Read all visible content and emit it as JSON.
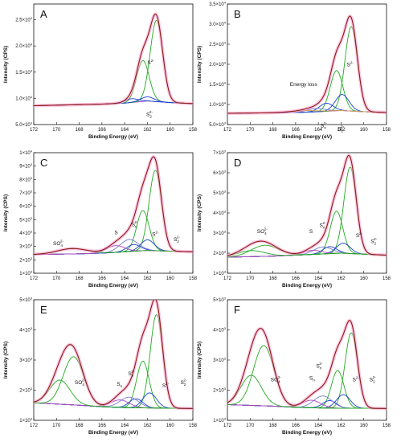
{
  "chart_data": [
    {
      "id": "A",
      "type": "line",
      "letter": "A",
      "xlabel": "Binding Energy (eV)",
      "ylabel": "Intensity (CPS)",
      "xlim": [
        172,
        158
      ],
      "xticks": [
        172,
        170,
        168,
        166,
        164,
        162,
        160,
        158
      ],
      "ylim": [
        5000,
        28000
      ],
      "yticks": [
        {
          "v": 5000,
          "m": "5.0",
          "e": "3"
        },
        {
          "v": 10000,
          "m": "1.0",
          "e": "4"
        },
        {
          "v": 15000,
          "m": "1.5",
          "e": "4"
        },
        {
          "v": 20000,
          "m": "2.0",
          "e": "4"
        },
        {
          "v": 25000,
          "m": "2.5",
          "e": "4"
        }
      ],
      "baseline": [
        [
          172,
          8600
        ],
        [
          166,
          8900
        ],
        [
          164,
          9100
        ],
        [
          162,
          9500
        ],
        [
          160,
          9200
        ],
        [
          158,
          9000
        ]
      ],
      "peaks": [
        {
          "name": "S2-",
          "c": 161.2,
          "a": 15500,
          "w": 0.55,
          "color": "#22aa22"
        },
        {
          "name": "S2-",
          "c": 162.4,
          "a": 7800,
          "w": 0.55,
          "color": "#22aa22"
        },
        {
          "name": "S22-",
          "c": 162.0,
          "a": 800,
          "w": 0.6,
          "color": "#1a3fd0"
        },
        {
          "name": "S22-",
          "c": 163.4,
          "a": 700,
          "w": 0.6,
          "color": "#1a3fd0"
        }
      ],
      "labels": [
        {
          "t": "S",
          "sup": "2-",
          "x": 162.0,
          "y": 16500
        },
        {
          "t": "S",
          "sub": "2",
          "sup": "2-",
          "x": 162.1,
          "y": 6600
        }
      ]
    },
    {
      "id": "B",
      "type": "line",
      "letter": "B",
      "xlabel": "Binding Energy (eV)",
      "ylabel": "Intensity (CPS)",
      "xlim": [
        172,
        158
      ],
      "xticks": [
        172,
        170,
        168,
        166,
        164,
        162,
        160,
        158
      ],
      "ylim": [
        5000,
        35000
      ],
      "yticks": [
        {
          "v": 5000,
          "m": "5.0",
          "e": "3"
        },
        {
          "v": 10000,
          "m": "1.0",
          "e": "4"
        },
        {
          "v": 15000,
          "m": "1.5",
          "e": "4"
        },
        {
          "v": 20000,
          "m": "2.0",
          "e": "4"
        },
        {
          "v": 25000,
          "m": "2.5",
          "e": "4"
        },
        {
          "v": 30000,
          "m": "3.0",
          "e": "4"
        },
        {
          "v": 35000,
          "m": "3.5",
          "e": "4"
        }
      ],
      "baseline": [
        [
          172,
          7800
        ],
        [
          166,
          8000
        ],
        [
          164,
          8200
        ],
        [
          162,
          8500
        ],
        [
          160,
          8200
        ],
        [
          158,
          8000
        ]
      ],
      "peaks": [
        {
          "name": "S2-",
          "c": 161.1,
          "a": 21000,
          "w": 0.55,
          "color": "#22aa22"
        },
        {
          "name": "S2-",
          "c": 162.4,
          "a": 10000,
          "w": 0.55,
          "color": "#22aa22"
        },
        {
          "name": "S22-",
          "c": 161.9,
          "a": 4000,
          "w": 0.6,
          "color": "#1a3fd0"
        },
        {
          "name": "S22-",
          "c": 163.3,
          "a": 2000,
          "w": 0.6,
          "color": "#1a3fd0"
        },
        {
          "name": "Sn2-",
          "c": 164.2,
          "a": 800,
          "w": 0.8,
          "color": "#7a7acd"
        },
        {
          "name": "Energy loss",
          "c": 165.3,
          "a": 400,
          "w": 1.2,
          "color": "#d7a04d"
        }
      ],
      "labels": [
        {
          "t": "Energy loss",
          "x": 166.5,
          "y": 14600
        },
        {
          "t": "S",
          "sup": "2-",
          "x": 161.5,
          "y": 19500
        },
        {
          "t": "S",
          "sub": "n",
          "sup": "2-",
          "x": 163.8,
          "y": 4300
        },
        {
          "t": "S",
          "sub": "2",
          "sup": "2-",
          "x": 162.3,
          "y": 3500
        }
      ]
    },
    {
      "id": "C",
      "type": "line",
      "letter": "C",
      "xlabel": "Binding Energy (eV)",
      "ylabel": "Intensity (CPS)",
      "xlim": [
        172,
        158
      ],
      "xticks": [
        172,
        170,
        168,
        166,
        164,
        162,
        160,
        158
      ],
      "ylim": [
        1000,
        10000
      ],
      "yticks": [
        {
          "v": 1000,
          "m": "1",
          "e": "3"
        },
        {
          "v": 2000,
          "m": "2",
          "e": "3"
        },
        {
          "v": 3000,
          "m": "3",
          "e": "3"
        },
        {
          "v": 4000,
          "m": "4",
          "e": "3"
        },
        {
          "v": 5000,
          "m": "5",
          "e": "3"
        },
        {
          "v": 6000,
          "m": "6",
          "e": "3"
        },
        {
          "v": 7000,
          "m": "7",
          "e": "3"
        },
        {
          "v": 8000,
          "m": "8",
          "e": "3"
        },
        {
          "v": 9000,
          "m": "9",
          "e": "3"
        },
        {
          "v": 10000,
          "m": "1",
          "e": "4"
        }
      ],
      "baseline": [
        [
          172,
          2400
        ],
        [
          168,
          2450
        ],
        [
          166,
          2500
        ],
        [
          164,
          2600
        ],
        [
          162,
          2700
        ],
        [
          160,
          2650
        ],
        [
          158,
          2600
        ]
      ],
      "peaks": [
        {
          "name": "S2-",
          "c": 161.3,
          "a": 6000,
          "w": 0.55,
          "color": "#22aa22"
        },
        {
          "name": "S2-",
          "c": 162.4,
          "a": 3000,
          "w": 0.55,
          "color": "#22aa22"
        },
        {
          "name": "S22-",
          "c": 162.0,
          "a": 800,
          "w": 0.6,
          "color": "#1a3fd0"
        },
        {
          "name": "S22-",
          "c": 163.2,
          "a": 500,
          "w": 0.6,
          "color": "#1a3fd0"
        },
        {
          "name": "Sn2-",
          "c": 163.6,
          "a": 900,
          "w": 0.8,
          "color": "#7a7acd"
        },
        {
          "name": "S",
          "c": 164.8,
          "a": 500,
          "w": 0.8,
          "color": "#aa44bb"
        },
        {
          "name": "SO42-",
          "c": 168.6,
          "a": 400,
          "w": 1.3,
          "color": "#22aa22"
        }
      ],
      "labels": [
        {
          "t": "SO",
          "sub": "4",
          "sup": "2-",
          "x": 170.3,
          "y": 3100
        },
        {
          "t": "S",
          "x": 164.9,
          "y": 3900
        },
        {
          "t": "S",
          "sub": "n",
          "sup": "2-",
          "x": 163.4,
          "y": 4500
        },
        {
          "t": "S",
          "sup": "2-",
          "x": 161.6,
          "y": 3800
        },
        {
          "t": "S",
          "sub": "2",
          "sup": "2-",
          "x": 159.7,
          "y": 3400
        }
      ]
    },
    {
      "id": "D",
      "type": "line",
      "letter": "D",
      "xlabel": "Binding Energy (eV)",
      "ylabel": "Intensity (CPS)",
      "xlim": [
        172,
        158
      ],
      "xticks": [
        172,
        170,
        168,
        166,
        164,
        162,
        160,
        158
      ],
      "ylim": [
        1000,
        7000
      ],
      "yticks": [
        {
          "v": 1000,
          "m": "1",
          "e": "3"
        },
        {
          "v": 2000,
          "m": "2",
          "e": "3"
        },
        {
          "v": 3000,
          "m": "3",
          "e": "3"
        },
        {
          "v": 4000,
          "m": "4",
          "e": "3"
        },
        {
          "v": 5000,
          "m": "5",
          "e": "3"
        },
        {
          "v": 6000,
          "m": "6",
          "e": "3"
        },
        {
          "v": 7000,
          "m": "7",
          "e": "3"
        }
      ],
      "baseline": [
        [
          172,
          1800
        ],
        [
          168,
          1850
        ],
        [
          166,
          1900
        ],
        [
          164,
          1950
        ],
        [
          162,
          2000
        ],
        [
          160,
          1950
        ],
        [
          158,
          1900
        ]
      ],
      "peaks": [
        {
          "name": "S2-",
          "c": 161.2,
          "a": 4300,
          "w": 0.55,
          "color": "#22aa22"
        },
        {
          "name": "S2-",
          "c": 162.4,
          "a": 2100,
          "w": 0.55,
          "color": "#22aa22"
        },
        {
          "name": "S22-",
          "c": 161.8,
          "a": 500,
          "w": 0.6,
          "color": "#1a3fd0"
        },
        {
          "name": "S22-",
          "c": 163.0,
          "a": 350,
          "w": 0.6,
          "color": "#1a3fd0"
        },
        {
          "name": "Sn2-",
          "c": 163.6,
          "a": 350,
          "w": 0.8,
          "color": "#7a7acd"
        },
        {
          "name": "S",
          "c": 164.5,
          "a": 200,
          "w": 0.8,
          "color": "#aa44bb"
        },
        {
          "name": "SO42-",
          "c": 168.7,
          "a": 550,
          "w": 1.2,
          "color": "#22aa22"
        },
        {
          "name": "SO42-",
          "c": 169.9,
          "a": 300,
          "w": 1.2,
          "color": "#22aa22"
        }
      ],
      "labels": [
        {
          "t": "SO",
          "sub": "4",
          "sup": "2-",
          "x": 169.4,
          "y": 3000
        },
        {
          "t": "S",
          "x": 164.8,
          "y": 3000
        },
        {
          "t": "S",
          "sub": "n",
          "sup": "2-",
          "x": 163.9,
          "y": 3300
        },
        {
          "t": "S",
          "sup": "2-",
          "x": 160.7,
          "y": 2800
        },
        {
          "t": "S",
          "sub": "2",
          "sup": "2-",
          "x": 159.4,
          "y": 2500
        }
      ]
    },
    {
      "id": "E",
      "type": "line",
      "letter": "E",
      "xlabel": "Binding Energy (eV)",
      "ylabel": "Intensity (CPS)",
      "xlim": [
        172,
        158
      ],
      "xticks": [
        172,
        170,
        168,
        166,
        164,
        162,
        160,
        158
      ],
      "ylim": [
        1000,
        5000
      ],
      "yticks": [
        {
          "v": 1000,
          "m": "1",
          "e": "3"
        },
        {
          "v": 2000,
          "m": "2",
          "e": "3"
        },
        {
          "v": 3000,
          "m": "3",
          "e": "3"
        },
        {
          "v": 4000,
          "m": "4",
          "e": "3"
        },
        {
          "v": 5000,
          "m": "5",
          "e": "3"
        }
      ],
      "baseline": [
        [
          172,
          1580
        ],
        [
          168,
          1500
        ],
        [
          166,
          1450
        ],
        [
          164,
          1420
        ],
        [
          162,
          1410
        ],
        [
          160,
          1400
        ],
        [
          158,
          1390
        ]
      ],
      "peaks": [
        {
          "name": "S2-",
          "c": 161.2,
          "a": 3100,
          "w": 0.55,
          "color": "#22aa22"
        },
        {
          "name": "S2-",
          "c": 162.4,
          "a": 1550,
          "w": 0.55,
          "color": "#22aa22"
        },
        {
          "name": "S22-",
          "c": 161.8,
          "a": 500,
          "w": 0.6,
          "color": "#1a3fd0"
        },
        {
          "name": "S22-",
          "c": 163.0,
          "a": 300,
          "w": 0.6,
          "color": "#1a3fd0"
        },
        {
          "name": "Sn2-",
          "c": 163.6,
          "a": 350,
          "w": 0.8,
          "color": "#7a7acd"
        },
        {
          "name": "S",
          "c": 164.4,
          "a": 250,
          "w": 0.8,
          "color": "#aa44bb"
        },
        {
          "name": "SO42-",
          "c": 168.5,
          "a": 1600,
          "w": 0.9,
          "color": "#22aa22"
        },
        {
          "name": "SO42-",
          "c": 169.7,
          "a": 800,
          "w": 0.9,
          "color": "#22aa22"
        }
      ],
      "labels": [
        {
          "t": "SO",
          "sub": "4",
          "sup": "2-",
          "x": 168.4,
          "y": 2200
        },
        {
          "t": "S",
          "sub": "n",
          "x": 164.7,
          "y": 2150
        },
        {
          "t": "S",
          "sub": "n",
          "sup": "2-",
          "x": 163.7,
          "y": 2500
        },
        {
          "t": "S",
          "sup": "2-",
          "x": 160.7,
          "y": 2100
        },
        {
          "t": "S",
          "sub": "2",
          "sup": "2-",
          "x": 159.1,
          "y": 2200
        }
      ]
    },
    {
      "id": "F",
      "type": "line",
      "letter": "F",
      "xlabel": "Binding Energy (eV)",
      "ylabel": "Intensity (CPS)",
      "xlim": [
        172,
        158
      ],
      "xticks": [
        172,
        170,
        168,
        166,
        164,
        162,
        160,
        158
      ],
      "ylim": [
        1000,
        5000
      ],
      "yticks": [
        {
          "v": 1000,
          "m": "1",
          "e": "3"
        },
        {
          "v": 2000,
          "m": "2",
          "e": "3"
        },
        {
          "v": 3000,
          "m": "3",
          "e": "3"
        },
        {
          "v": 4000,
          "m": "4",
          "e": "3"
        },
        {
          "v": 5000,
          "m": "5",
          "e": "3"
        }
      ],
      "baseline": [
        [
          172,
          1520
        ],
        [
          168,
          1470
        ],
        [
          166,
          1430
        ],
        [
          164,
          1410
        ],
        [
          162,
          1400
        ],
        [
          160,
          1400
        ],
        [
          158,
          1390
        ]
      ],
      "peaks": [
        {
          "name": "S2-",
          "c": 161.1,
          "a": 2500,
          "w": 0.55,
          "color": "#22aa22"
        },
        {
          "name": "S2-",
          "c": 162.3,
          "a": 1250,
          "w": 0.55,
          "color": "#22aa22"
        },
        {
          "name": "S22-",
          "c": 161.8,
          "a": 450,
          "w": 0.6,
          "color": "#1a3fd0"
        },
        {
          "name": "S22-",
          "c": 163.0,
          "a": 250,
          "w": 0.6,
          "color": "#1a3fd0"
        },
        {
          "name": "Sn2-",
          "c": 163.6,
          "a": 400,
          "w": 0.8,
          "color": "#7a7acd"
        },
        {
          "name": "S",
          "c": 164.6,
          "a": 250,
          "w": 0.8,
          "color": "#aa44bb"
        },
        {
          "name": "SO42-",
          "c": 168.8,
          "a": 2000,
          "w": 0.9,
          "color": "#22aa22"
        },
        {
          "name": "SO42-",
          "c": 169.9,
          "a": 1000,
          "w": 0.9,
          "color": "#22aa22"
        }
      ],
      "labels": [
        {
          "t": "SO",
          "sub": "4",
          "sup": "2-",
          "x": 168.2,
          "y": 2300
        },
        {
          "t": "S",
          "sub": "n",
          "x": 164.8,
          "y": 2350
        },
        {
          "t": "S",
          "sub": "n",
          "sup": "2-",
          "x": 164.2,
          "y": 2750
        },
        {
          "t": "S",
          "sup": "2-",
          "x": 161.0,
          "y": 2300
        },
        {
          "t": "S",
          "sub": "2",
          "sup": "2-",
          "x": 159.5,
          "y": 2300
        }
      ]
    }
  ],
  "colors": {
    "envelope": "#8b1a1a",
    "envelope_glow": "#ff99c8",
    "baseline": "#9933cc",
    "axis": "#111111"
  }
}
